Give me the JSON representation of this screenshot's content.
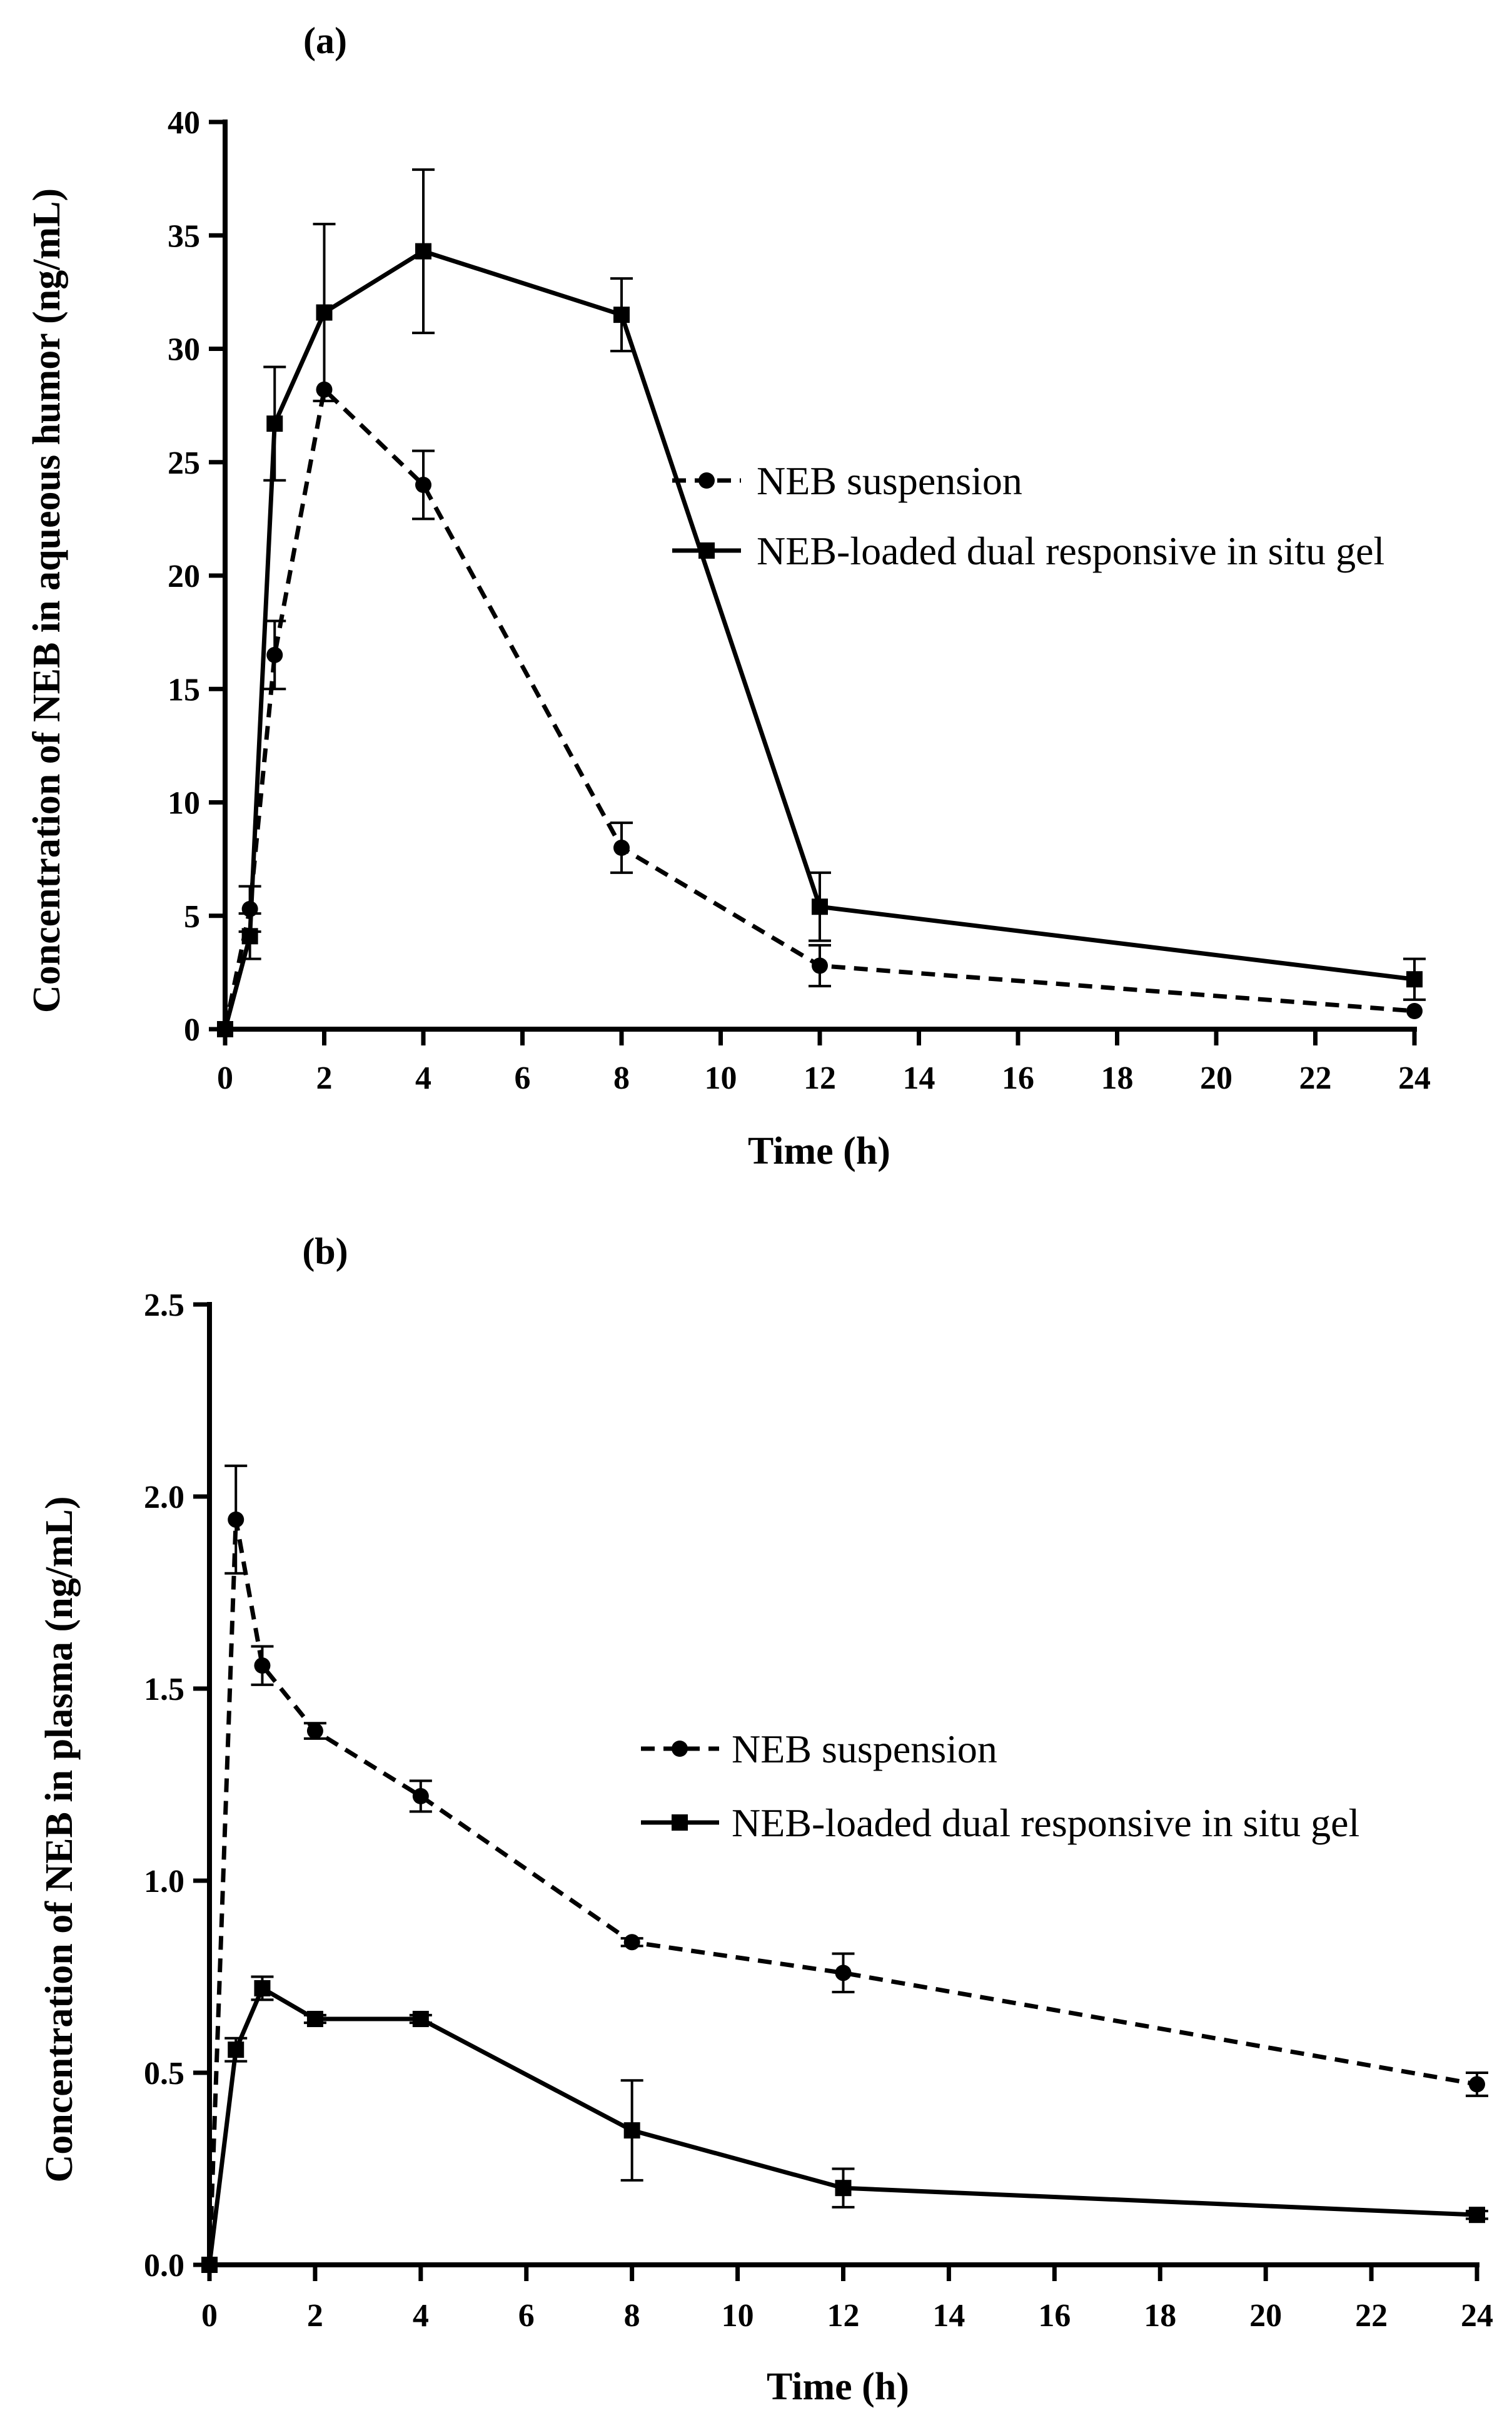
{
  "chart_data": [
    {
      "type": "line",
      "panel": "(a)",
      "title": "(a)",
      "xlabel": "Time (h)",
      "ylabel": "Concentration of NEB in aqueous humor (ng/mL)",
      "xlim": [
        0,
        24
      ],
      "ylim": [
        0,
        40
      ],
      "xticks": [
        0,
        2,
        4,
        6,
        8,
        10,
        12,
        14,
        16,
        18,
        20,
        22,
        24
      ],
      "yticks": [
        0,
        5,
        10,
        15,
        20,
        25,
        30,
        35,
        40
      ],
      "legend_position": "center-right",
      "series": [
        {
          "name": "NEB suspension",
          "style": "dashed",
          "marker": "circle",
          "x": [
            0,
            0.5,
            1,
            2,
            4,
            8,
            12,
            24
          ],
          "y": [
            0,
            5.3,
            16.5,
            28.2,
            24.0,
            8.0,
            2.8,
            0.8
          ],
          "err": [
            0,
            1.0,
            1.5,
            0,
            1.5,
            1.1,
            0.9,
            0
          ]
        },
        {
          "name": "NEB-loaded dual responsive in situ gel",
          "style": "solid",
          "marker": "square",
          "x": [
            0,
            0.5,
            1,
            2,
            4,
            8,
            12,
            24
          ],
          "y": [
            0,
            4.1,
            26.7,
            31.6,
            34.3,
            31.5,
            5.4,
            2.2
          ],
          "err": [
            0,
            1.0,
            2.5,
            3.9,
            3.6,
            1.6,
            1.5,
            0.9
          ]
        }
      ]
    },
    {
      "type": "line",
      "panel": "(b)",
      "title": "(b)",
      "xlabel": "Time (h)",
      "ylabel": "Concentration of NEB in plasma (ng/mL)",
      "xlim": [
        0,
        24
      ],
      "ylim": [
        0,
        2.5
      ],
      "xticks": [
        0,
        2,
        4,
        6,
        8,
        10,
        12,
        14,
        16,
        18,
        20,
        22,
        24
      ],
      "yticks": [
        "0.0",
        "0.5",
        "1.0",
        "1.5",
        "2.0",
        "2.5"
      ],
      "legend_position": "center-right",
      "series": [
        {
          "name": "NEB suspension",
          "style": "dashed",
          "marker": "circle",
          "x": [
            0,
            0.5,
            1,
            2,
            4,
            8,
            12,
            24
          ],
          "y": [
            0,
            1.94,
            1.56,
            1.39,
            1.22,
            0.84,
            0.76,
            0.47
          ],
          "err": [
            0,
            0.14,
            0.05,
            0.02,
            0.04,
            0.01,
            0.05,
            0.03
          ]
        },
        {
          "name": "NEB-loaded dual responsive in situ gel",
          "style": "solid",
          "marker": "square",
          "x": [
            0,
            0.5,
            1,
            2,
            4,
            8,
            12,
            24
          ],
          "y": [
            0,
            0.56,
            0.72,
            0.64,
            0.64,
            0.35,
            0.2,
            0.13
          ],
          "err": [
            0,
            0.03,
            0.03,
            0.01,
            0.01,
            0.13,
            0.05,
            0.01
          ]
        }
      ]
    }
  ]
}
